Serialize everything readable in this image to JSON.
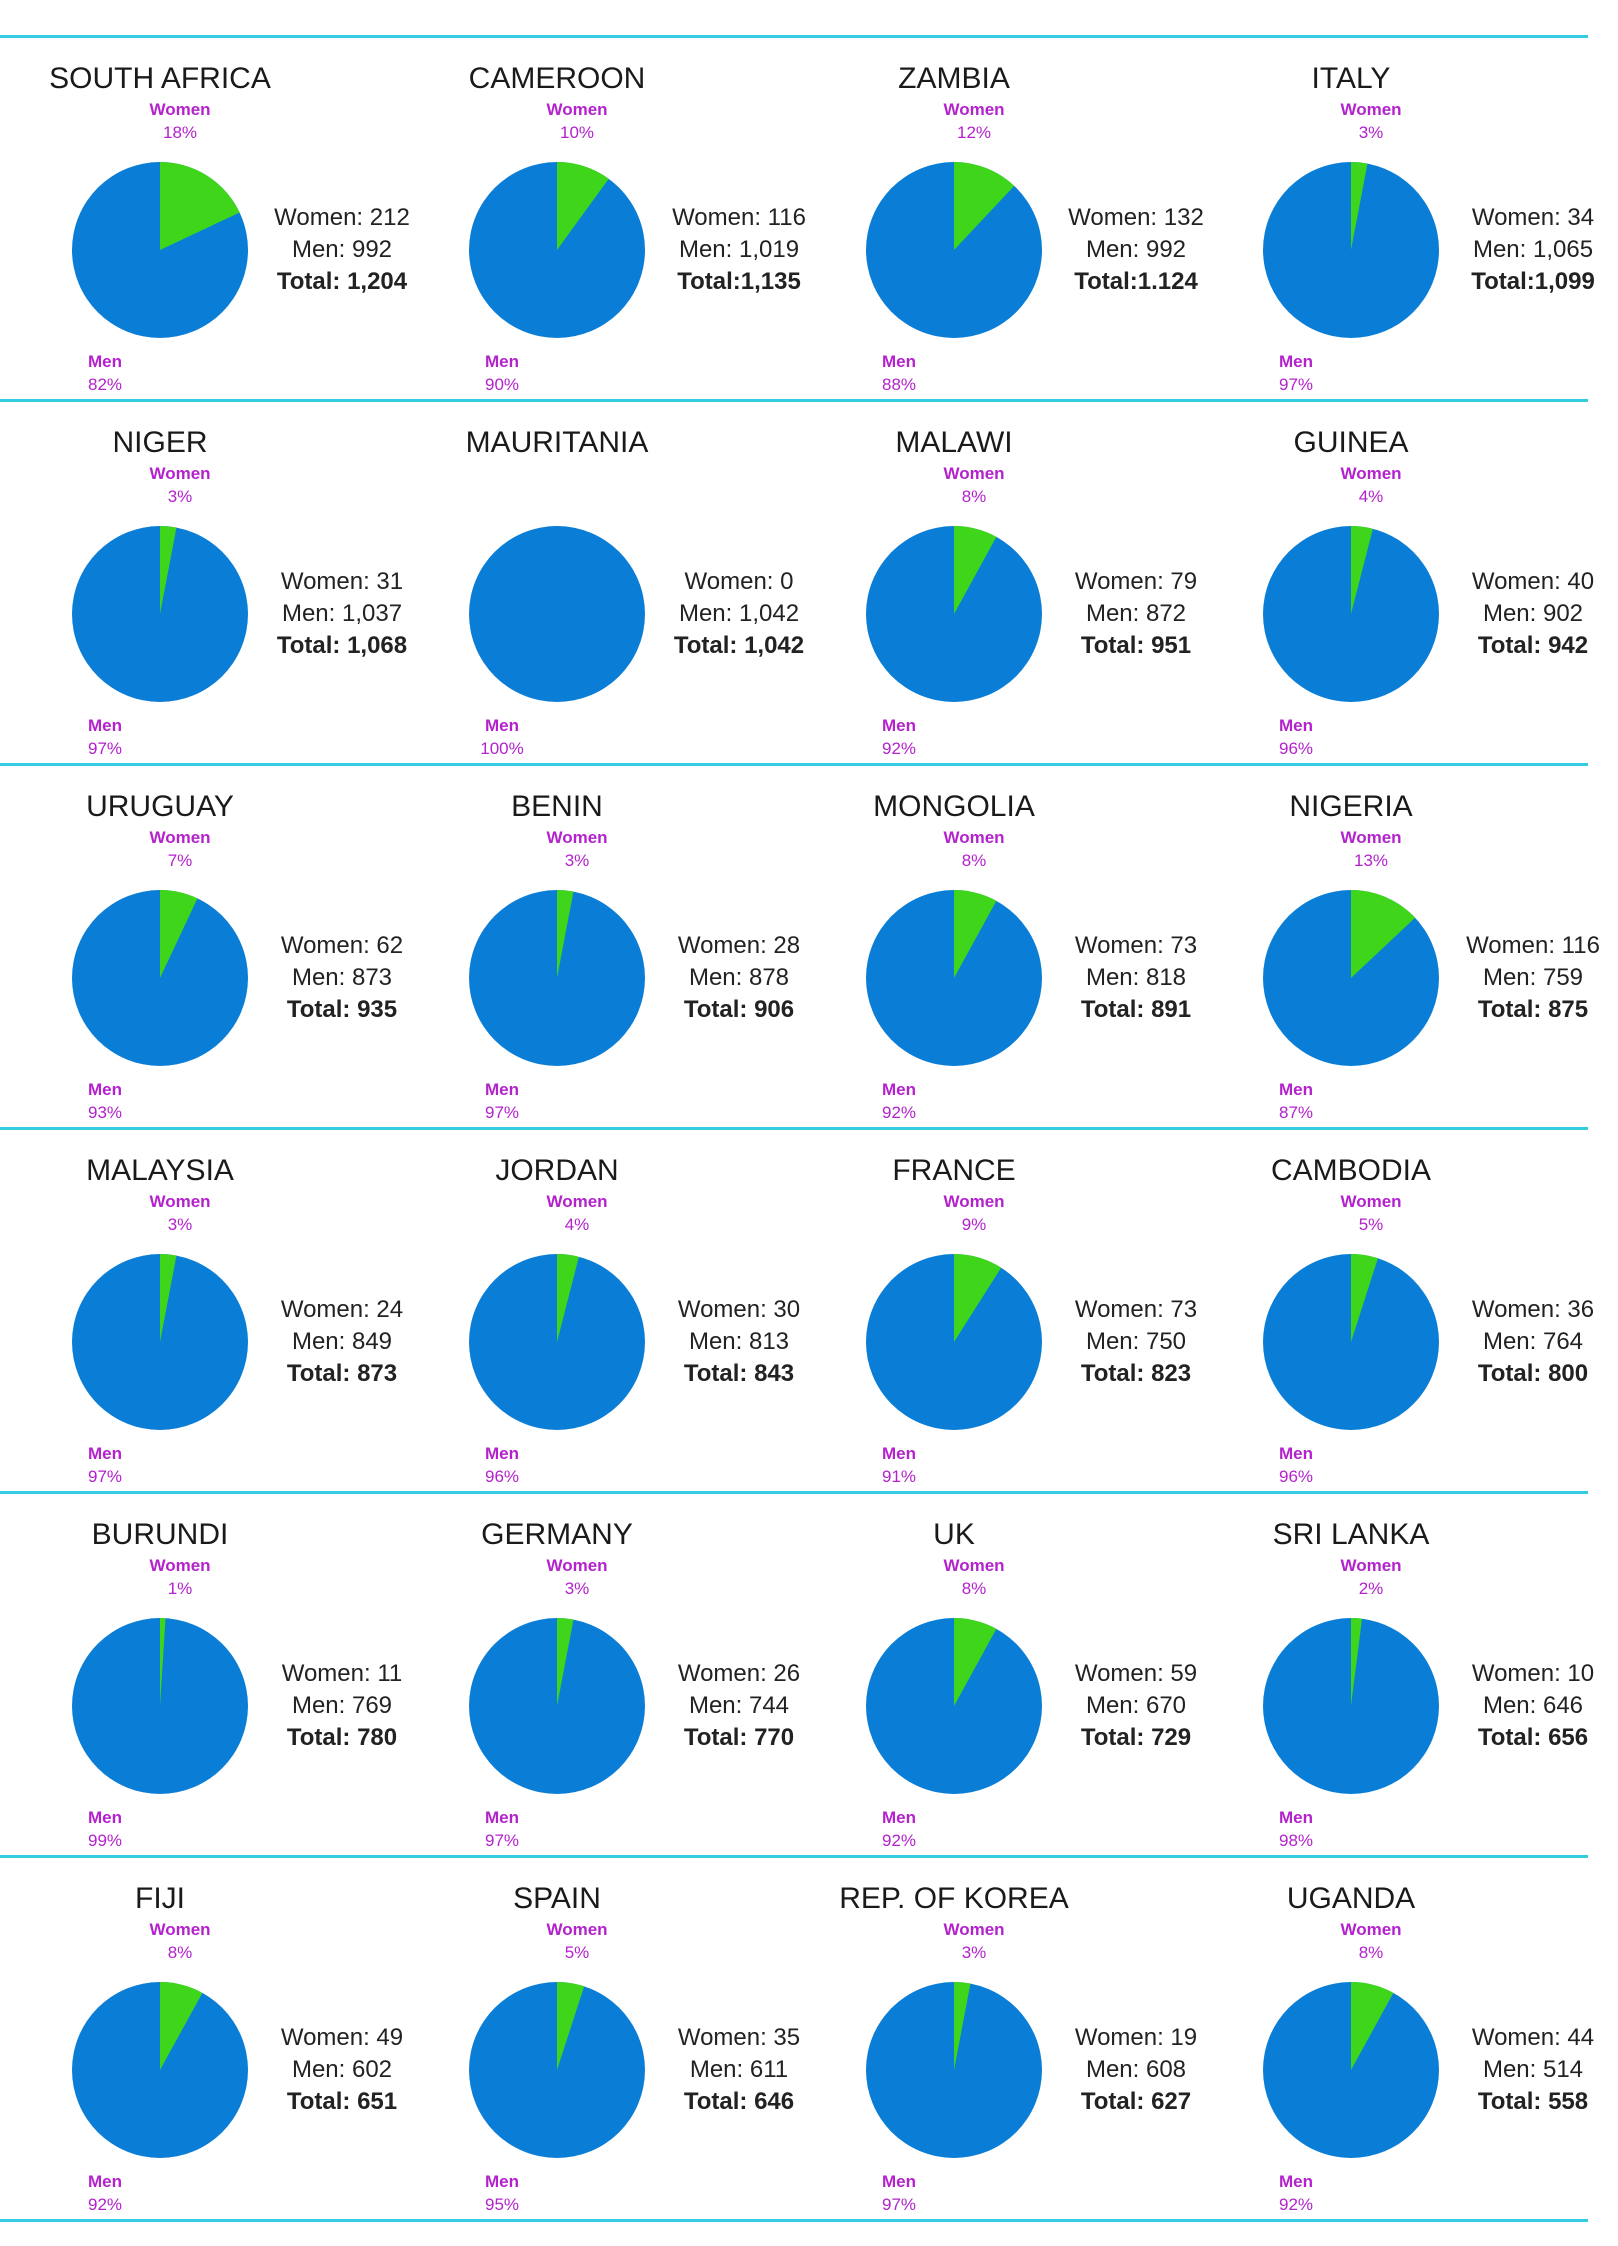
{
  "colors": {
    "men": "#0a7ed6",
    "women": "#3ed51a",
    "divider": "#33cce0",
    "label": "#b322cc"
  },
  "labels": {
    "women": "Women",
    "men": "Men"
  },
  "chart_data": [
    {
      "type": "pie",
      "title": "SOUTH AFRICA",
      "slices": [
        {
          "label": "Women",
          "value": 18
        },
        {
          "label": "Men",
          "value": 82
        }
      ],
      "women_pct": "18%",
      "men_pct": "82%",
      "women_text": "Women: 212",
      "men_text": "Men: 992",
      "total_text": "Total: 1,204"
    },
    {
      "type": "pie",
      "title": "CAMEROON",
      "slices": [
        {
          "label": "Women",
          "value": 10
        },
        {
          "label": "Men",
          "value": 90
        }
      ],
      "women_pct": "10%",
      "men_pct": "90%",
      "women_text": "Women: 116",
      "men_text": "Men: 1,019",
      "total_text": "Total:1,135"
    },
    {
      "type": "pie",
      "title": "ZAMBIA",
      "slices": [
        {
          "label": "Women",
          "value": 12
        },
        {
          "label": "Men",
          "value": 88
        }
      ],
      "women_pct": "12%",
      "men_pct": "88%",
      "women_text": "Women: 132",
      "men_text": "Men: 992",
      "total_text": "Total:1.124"
    },
    {
      "type": "pie",
      "title": "ITALY",
      "slices": [
        {
          "label": "Women",
          "value": 3
        },
        {
          "label": "Men",
          "value": 97
        }
      ],
      "women_pct": "3%",
      "men_pct": "97%",
      "women_text": "Women: 34",
      "men_text": "Men: 1,065",
      "total_text": "Total:1,099"
    },
    {
      "type": "pie",
      "title": "NIGER",
      "slices": [
        {
          "label": "Women",
          "value": 3
        },
        {
          "label": "Men",
          "value": 97
        }
      ],
      "women_pct": "3%",
      "men_pct": "97%",
      "women_text": "Women: 31",
      "men_text": "Men: 1,037",
      "total_text": "Total: 1,068"
    },
    {
      "type": "pie",
      "title": "MAURITANIA",
      "slices": [
        {
          "label": "Women",
          "value": 0
        },
        {
          "label": "Men",
          "value": 100
        }
      ],
      "women_pct": "",
      "men_pct": "100%",
      "women_text": "Women: 0",
      "men_text": "Men: 1,042",
      "total_text": "Total: 1,042"
    },
    {
      "type": "pie",
      "title": "MALAWI",
      "slices": [
        {
          "label": "Women",
          "value": 8
        },
        {
          "label": "Men",
          "value": 92
        }
      ],
      "women_pct": "8%",
      "men_pct": "92%",
      "women_text": "Women: 79",
      "men_text": "Men: 872",
      "total_text": "Total: 951"
    },
    {
      "type": "pie",
      "title": "GUINEA",
      "slices": [
        {
          "label": "Women",
          "value": 4
        },
        {
          "label": "Men",
          "value": 96
        }
      ],
      "women_pct": "4%",
      "men_pct": "96%",
      "women_text": "Women: 40",
      "men_text": "Men: 902",
      "total_text": "Total: 942"
    },
    {
      "type": "pie",
      "title": "URUGUAY",
      "slices": [
        {
          "label": "Women",
          "value": 7
        },
        {
          "label": "Men",
          "value": 93
        }
      ],
      "women_pct": "7%",
      "men_pct": "93%",
      "women_text": "Women: 62",
      "men_text": "Men: 873",
      "total_text": "Total: 935"
    },
    {
      "type": "pie",
      "title": "BENIN",
      "slices": [
        {
          "label": "Women",
          "value": 3
        },
        {
          "label": "Men",
          "value": 97
        }
      ],
      "women_pct": "3%",
      "men_pct": "97%",
      "women_text": "Women: 28",
      "men_text": "Men: 878",
      "total_text": "Total: 906"
    },
    {
      "type": "pie",
      "title": "MONGOLIA",
      "slices": [
        {
          "label": "Women",
          "value": 8
        },
        {
          "label": "Men",
          "value": 92
        }
      ],
      "women_pct": "8%",
      "men_pct": "92%",
      "women_text": "Women: 73",
      "men_text": "Men: 818",
      "total_text": "Total: 891"
    },
    {
      "type": "pie",
      "title": "NIGERIA",
      "slices": [
        {
          "label": "Women",
          "value": 13
        },
        {
          "label": "Men",
          "value": 87
        }
      ],
      "women_pct": "13%",
      "men_pct": "87%",
      "women_text": "Women: 116",
      "men_text": "Men: 759",
      "total_text": "Total: 875"
    },
    {
      "type": "pie",
      "title": "MALAYSIA",
      "slices": [
        {
          "label": "Women",
          "value": 3
        },
        {
          "label": "Men",
          "value": 97
        }
      ],
      "women_pct": "3%",
      "men_pct": "97%",
      "women_text": "Women: 24",
      "men_text": "Men: 849",
      "total_text": "Total: 873"
    },
    {
      "type": "pie",
      "title": "JORDAN",
      "slices": [
        {
          "label": "Women",
          "value": 4
        },
        {
          "label": "Men",
          "value": 96
        }
      ],
      "women_pct": "4%",
      "men_pct": "96%",
      "women_text": "Women: 30",
      "men_text": "Men: 813",
      "total_text": "Total: 843"
    },
    {
      "type": "pie",
      "title": "FRANCE",
      "slices": [
        {
          "label": "Women",
          "value": 9
        },
        {
          "label": "Men",
          "value": 91
        }
      ],
      "women_pct": "9%",
      "men_pct": "91%",
      "women_text": "Women: 73",
      "men_text": "Men: 750",
      "total_text": "Total: 823"
    },
    {
      "type": "pie",
      "title": "CAMBODIA",
      "slices": [
        {
          "label": "Women",
          "value": 5
        },
        {
          "label": "Men",
          "value": 96
        }
      ],
      "women_pct": "5%",
      "men_pct": "96%",
      "women_text": "Women: 36",
      "men_text": "Men: 764",
      "total_text": "Total: 800"
    },
    {
      "type": "pie",
      "title": "BURUNDI",
      "slices": [
        {
          "label": "Women",
          "value": 1
        },
        {
          "label": "Men",
          "value": 99
        }
      ],
      "women_pct": "1%",
      "men_pct": "99%",
      "women_text": "Women: 11",
      "men_text": "Men: 769",
      "total_text": "Total: 780"
    },
    {
      "type": "pie",
      "title": "GERMANY",
      "slices": [
        {
          "label": "Women",
          "value": 3
        },
        {
          "label": "Men",
          "value": 97
        }
      ],
      "women_pct": "3%",
      "men_pct": "97%",
      "women_text": "Women: 26",
      "men_text": "Men: 744",
      "total_text": "Total: 770"
    },
    {
      "type": "pie",
      "title": "UK",
      "slices": [
        {
          "label": "Women",
          "value": 8
        },
        {
          "label": "Men",
          "value": 92
        }
      ],
      "women_pct": "8%",
      "men_pct": "92%",
      "women_text": "Women: 59",
      "men_text": "Men: 670",
      "total_text": "Total: 729"
    },
    {
      "type": "pie",
      "title": "SRI LANKA",
      "slices": [
        {
          "label": "Women",
          "value": 2
        },
        {
          "label": "Men",
          "value": 98
        }
      ],
      "women_pct": "2%",
      "men_pct": "98%",
      "women_text": "Women: 10",
      "men_text": "Men: 646",
      "total_text": "Total: 656"
    },
    {
      "type": "pie",
      "title": "FIJI",
      "slices": [
        {
          "label": "Women",
          "value": 8
        },
        {
          "label": "Men",
          "value": 92
        }
      ],
      "women_pct": "8%",
      "men_pct": "92%",
      "women_text": "Women: 49",
      "men_text": "Men: 602",
      "total_text": "Total: 651"
    },
    {
      "type": "pie",
      "title": "SPAIN",
      "slices": [
        {
          "label": "Women",
          "value": 5
        },
        {
          "label": "Men",
          "value": 95
        }
      ],
      "women_pct": "5%",
      "men_pct": "95%",
      "women_text": "Women: 35",
      "men_text": "Men: 611",
      "total_text": "Total: 646"
    },
    {
      "type": "pie",
      "title": "REP. OF KOREA",
      "slices": [
        {
          "label": "Women",
          "value": 3
        },
        {
          "label": "Men",
          "value": 97
        }
      ],
      "women_pct": "3%",
      "men_pct": "97%",
      "women_text": "Women: 19",
      "men_text": "Men: 608",
      "total_text": "Total: 627"
    },
    {
      "type": "pie",
      "title": "UGANDA",
      "slices": [
        {
          "label": "Women",
          "value": 8
        },
        {
          "label": "Men",
          "value": 92
        }
      ],
      "women_pct": "8%",
      "men_pct": "92%",
      "women_text": "Women: 44",
      "men_text": "Men: 514",
      "total_text": "Total: 558"
    }
  ]
}
